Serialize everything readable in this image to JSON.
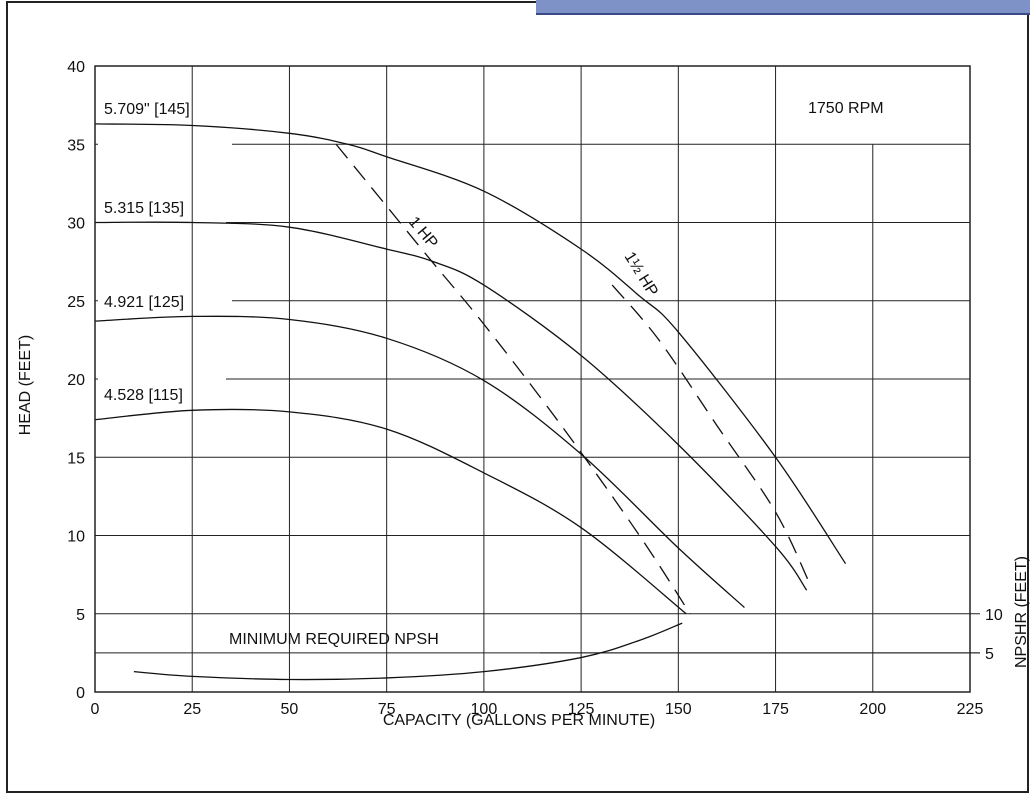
{
  "chart_data": {
    "type": "line",
    "annotation_rpm": "1750 RPM",
    "xlabel": "CAPACITY (GALLONS PER MINUTE)",
    "ylabel": "HEAD (FEET)",
    "y2label": "NPSHR (FEET)",
    "xlim": [
      0,
      225
    ],
    "ylim": [
      0,
      40
    ],
    "x_ticks": [
      0,
      25,
      50,
      75,
      100,
      125,
      150,
      175,
      200,
      225
    ],
    "y_ticks": [
      0,
      5,
      10,
      15,
      20,
      25,
      30,
      35,
      40
    ],
    "y2_ticks": [
      {
        "label": "5",
        "head_equiv": 2.5
      },
      {
        "label": "10",
        "head_equiv": 5
      }
    ],
    "grid": true,
    "series": [
      {
        "name": "5.709\" [145]",
        "style": "solid",
        "x": [
          0,
          25,
          50,
          65,
          75,
          100,
          125,
          140,
          150,
          175,
          193
        ],
        "y": [
          36.3,
          36.2,
          35.7,
          35.0,
          34.2,
          32.0,
          28.3,
          25.3,
          23.0,
          15.0,
          8.2
        ]
      },
      {
        "name": "5.315 [135]",
        "style": "solid",
        "x": [
          0,
          25,
          50,
          75,
          87,
          100,
          125,
          150,
          175,
          183
        ],
        "y": [
          30.0,
          30.0,
          29.7,
          28.3,
          27.5,
          26.0,
          21.5,
          15.8,
          9.3,
          6.5
        ]
      },
      {
        "name": "4.921 [125]",
        "style": "solid",
        "x": [
          0,
          25,
          50,
          75,
          100,
          125,
          150,
          167
        ],
        "y": [
          23.7,
          24.0,
          23.8,
          22.6,
          19.9,
          15.2,
          9.2,
          5.4
        ]
      },
      {
        "name": "4.528 [115]",
        "style": "solid",
        "x": [
          0,
          25,
          50,
          75,
          100,
          125,
          152
        ],
        "y": [
          17.4,
          18.0,
          17.9,
          16.8,
          14.0,
          10.5,
          5.0
        ]
      },
      {
        "name": "1 HP",
        "style": "dashed",
        "x": [
          62,
          85,
          100,
          120,
          140,
          153
        ],
        "y": [
          35.0,
          28.0,
          23.5,
          17.0,
          10.0,
          5.0
        ]
      },
      {
        "name": "1½ HP",
        "style": "dashed",
        "x": [
          133,
          145,
          160,
          175,
          184
        ],
        "y": [
          26.0,
          22.5,
          17.0,
          11.5,
          6.8
        ]
      },
      {
        "name": "MINIMUM REQUIRED NPSH",
        "style": "solid",
        "x": [
          10,
          25,
          50,
          75,
          100,
          125,
          140,
          151
        ],
        "y": [
          1.3,
          1.0,
          0.8,
          0.9,
          1.3,
          2.2,
          3.3,
          4.4
        ]
      }
    ],
    "series_labels": {
      "s145": "5.709\" [145]",
      "s135": "5.315 [135]",
      "s125": "4.921 [125]",
      "s115": "4.528 [115]",
      "hp1": "1 HP",
      "hp15": "1½ HP",
      "npsh": "MINIMUM REQUIRED NPSH"
    }
  }
}
